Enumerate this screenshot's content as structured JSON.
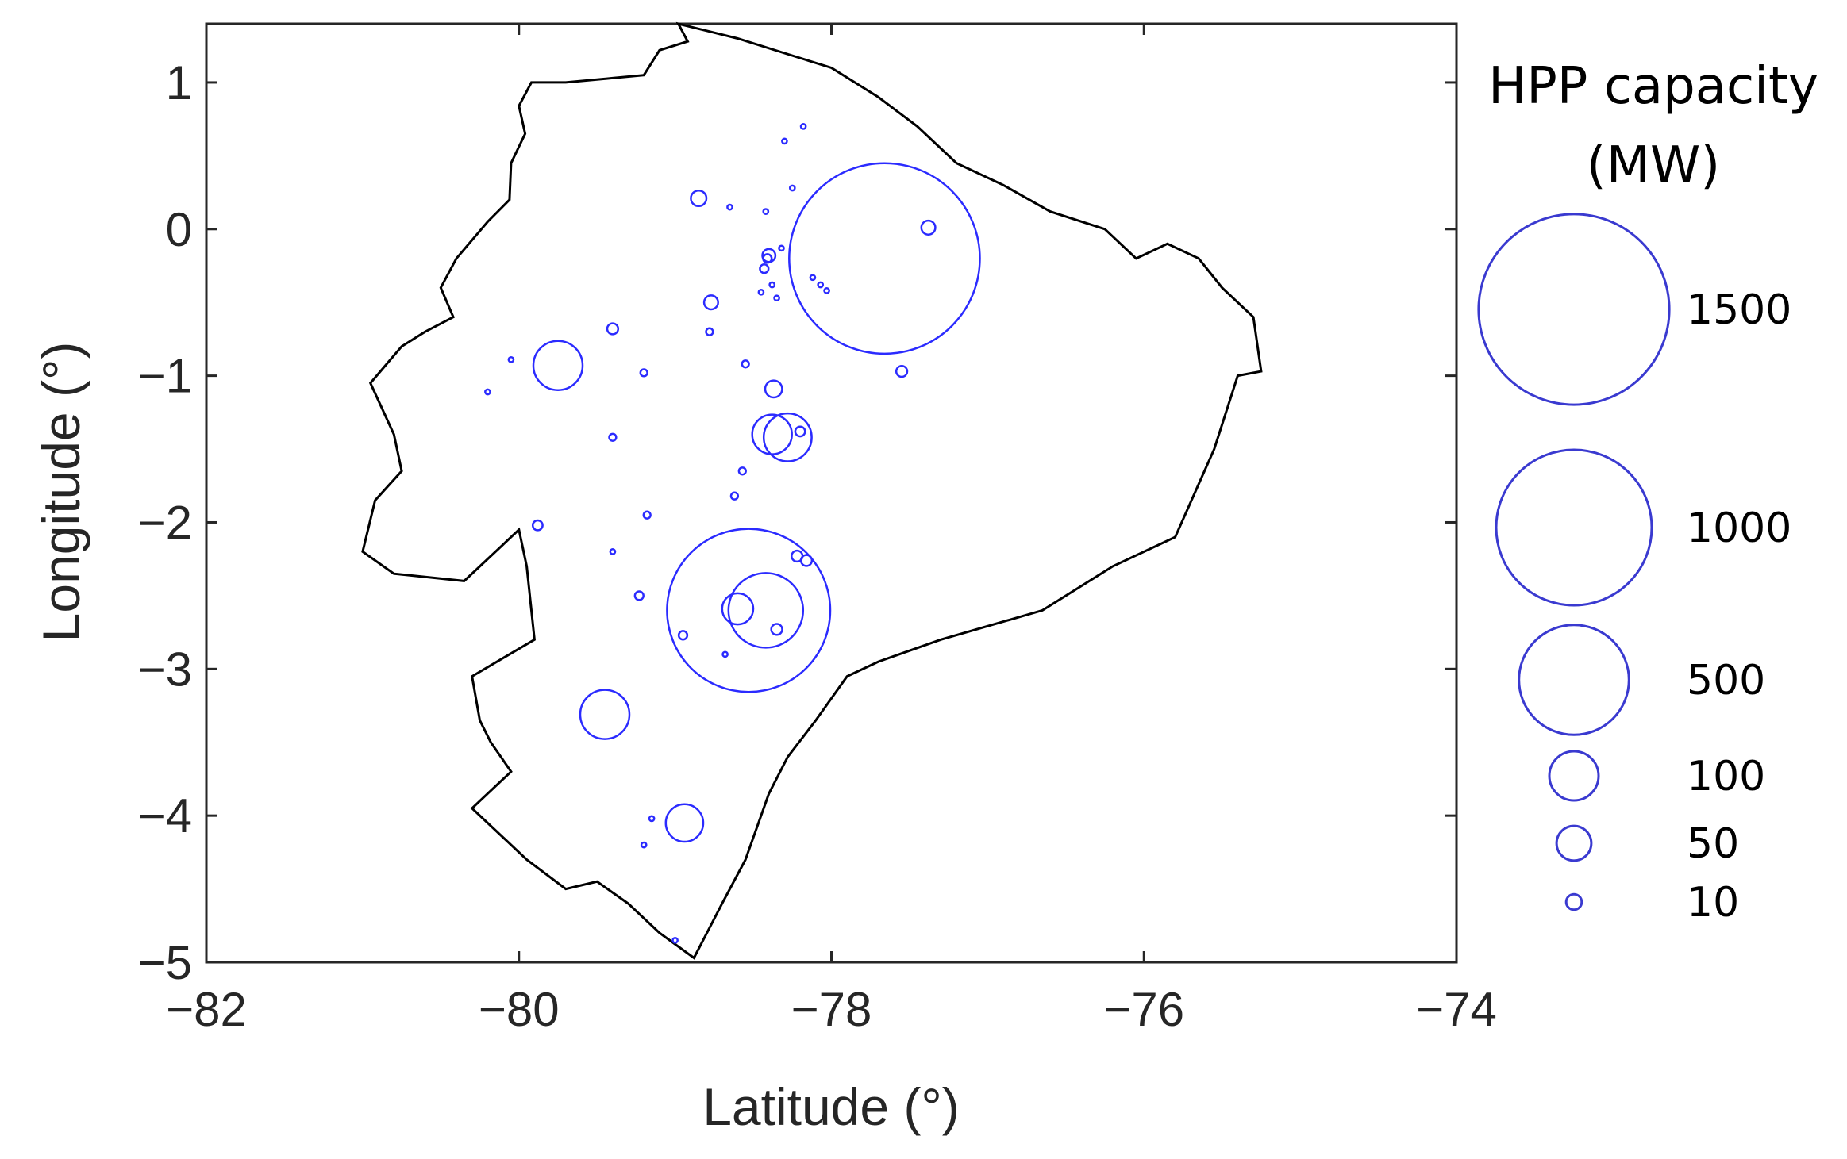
{
  "chart_data": {
    "type": "scatter",
    "title": "",
    "xlabel": "Latitude (°)",
    "ylabel": "Longitude (°)",
    "xlim": [
      -82,
      -74
    ],
    "ylim": [
      -5,
      1.4
    ],
    "xticks": [
      -82,
      -80,
      -78,
      -76,
      -74
    ],
    "yticks": [
      1,
      0,
      -1,
      -2,
      -3,
      -4,
      -5
    ],
    "xtick_labels": [
      "−82",
      "−80",
      "−78",
      "−76",
      "−74"
    ],
    "ytick_labels": [
      "1",
      "0",
      "−1",
      "−2",
      "−3",
      "−4",
      "−5"
    ],
    "grid": false,
    "marker_color": "#2b2bff",
    "outline_color": "#000000",
    "legend": {
      "title_line1": "HPP capacity",
      "title_line2": "(MW)",
      "placement": "right",
      "entries": [
        {
          "label": "1500",
          "capacity": 1500
        },
        {
          "label": "1000",
          "capacity": 1000
        },
        {
          "label": "500",
          "capacity": 500
        },
        {
          "label": "100",
          "capacity": 100
        },
        {
          "label": "50",
          "capacity": 50
        },
        {
          "label": "10",
          "capacity": 10
        }
      ]
    },
    "outline": [
      [
        -78.98,
        1.4
      ],
      [
        -78.92,
        1.28
      ],
      [
        -79.1,
        1.22
      ],
      [
        -79.2,
        1.05
      ],
      [
        -79.4,
        1.03
      ],
      [
        -79.7,
        1.0
      ],
      [
        -79.92,
        1.0
      ],
      [
        -80.0,
        0.84
      ],
      [
        -79.96,
        0.65
      ],
      [
        -80.05,
        0.45
      ],
      [
        -80.06,
        0.2
      ],
      [
        -80.2,
        0.05
      ],
      [
        -80.4,
        -0.2
      ],
      [
        -80.5,
        -0.4
      ],
      [
        -80.42,
        -0.6
      ],
      [
        -80.6,
        -0.7
      ],
      [
        -80.75,
        -0.8
      ],
      [
        -80.95,
        -1.05
      ],
      [
        -80.8,
        -1.4
      ],
      [
        -80.75,
        -1.65
      ],
      [
        -80.92,
        -1.85
      ],
      [
        -81.0,
        -2.2
      ],
      [
        -80.8,
        -2.35
      ],
      [
        -80.35,
        -2.4
      ],
      [
        -80.0,
        -2.05
      ],
      [
        -79.95,
        -2.3
      ],
      [
        -79.9,
        -2.8
      ],
      [
        -80.3,
        -3.05
      ],
      [
        -80.25,
        -3.35
      ],
      [
        -80.18,
        -3.5
      ],
      [
        -80.05,
        -3.7
      ],
      [
        -80.3,
        -3.95
      ],
      [
        -80.15,
        -4.1
      ],
      [
        -79.95,
        -4.3
      ],
      [
        -79.7,
        -4.5
      ],
      [
        -79.5,
        -4.45
      ],
      [
        -79.3,
        -4.6
      ],
      [
        -79.1,
        -4.8
      ],
      [
        -78.88,
        -4.97
      ],
      [
        -78.7,
        -4.6
      ],
      [
        -78.55,
        -4.3
      ],
      [
        -78.4,
        -3.85
      ],
      [
        -78.28,
        -3.6
      ],
      [
        -78.1,
        -3.35
      ],
      [
        -77.9,
        -3.05
      ],
      [
        -77.7,
        -2.95
      ],
      [
        -77.3,
        -2.8
      ],
      [
        -76.65,
        -2.6
      ],
      [
        -76.2,
        -2.3
      ],
      [
        -75.8,
        -2.1
      ],
      [
        -75.55,
        -1.5
      ],
      [
        -75.4,
        -1.0
      ],
      [
        -75.25,
        -0.97
      ],
      [
        -75.3,
        -0.6
      ],
      [
        -75.5,
        -0.4
      ],
      [
        -75.65,
        -0.2
      ],
      [
        -75.85,
        -0.1
      ],
      [
        -76.05,
        -0.2
      ],
      [
        -76.25,
        0.0
      ],
      [
        -76.6,
        0.12
      ],
      [
        -76.9,
        0.3
      ],
      [
        -77.2,
        0.45
      ],
      [
        -77.45,
        0.7
      ],
      [
        -77.7,
        0.9
      ],
      [
        -78.0,
        1.1
      ],
      [
        -78.3,
        1.2
      ],
      [
        -78.6,
        1.3
      ],
      [
        -78.98,
        1.4
      ]
    ],
    "plants": [
      {
        "lon": -77.66,
        "lat": -0.2,
        "capacity": 1500
      },
      {
        "lon": -78.53,
        "lat": -2.6,
        "capacity": 1100
      },
      {
        "lon": -78.42,
        "lat": -2.6,
        "capacity": 230
      },
      {
        "lon": -78.28,
        "lat": -1.42,
        "capacity": 95
      },
      {
        "lon": -78.38,
        "lat": -1.4,
        "capacity": 65
      },
      {
        "lon": -79.75,
        "lat": -0.93,
        "capacity": 100
      },
      {
        "lon": -79.45,
        "lat": -3.31,
        "capacity": 100
      },
      {
        "lon": -78.94,
        "lat": -4.05,
        "capacity": 58
      },
      {
        "lon": -78.6,
        "lat": -2.59,
        "capacity": 40
      },
      {
        "lon": -78.37,
        "lat": -1.09,
        "capacity": 12
      },
      {
        "lon": -78.85,
        "lat": 0.21,
        "capacity": 10
      },
      {
        "lon": -78.77,
        "lat": -0.5,
        "capacity": 8
      },
      {
        "lon": -77.38,
        "lat": 0.01,
        "capacity": 8
      },
      {
        "lon": -78.4,
        "lat": -0.18,
        "capacity": 7
      },
      {
        "lon": -77.55,
        "lat": -0.97,
        "capacity": 5
      },
      {
        "lon": -79.4,
        "lat": -0.68,
        "capacity": 5
      },
      {
        "lon": -78.22,
        "lat": -2.23,
        "capacity": 5
      },
      {
        "lon": -78.16,
        "lat": -2.26,
        "capacity": 5
      },
      {
        "lon": -78.35,
        "lat": -2.73,
        "capacity": 5
      },
      {
        "lon": -79.88,
        "lat": -2.02,
        "capacity": 4
      },
      {
        "lon": -78.2,
        "lat": -1.38,
        "capacity": 4
      },
      {
        "lon": -78.41,
        "lat": -0.2,
        "capacity": 3
      },
      {
        "lon": -78.43,
        "lat": -0.27,
        "capacity": 3
      },
      {
        "lon": -78.95,
        "lat": -2.77,
        "capacity": 3
      },
      {
        "lon": -79.23,
        "lat": -2.5,
        "capacity": 3
      },
      {
        "lon": -78.78,
        "lat": -0.7,
        "capacity": 2
      },
      {
        "lon": -78.62,
        "lat": -1.82,
        "capacity": 2
      },
      {
        "lon": -78.57,
        "lat": -1.65,
        "capacity": 2
      },
      {
        "lon": -78.55,
        "lat": -0.92,
        "capacity": 2
      },
      {
        "lon": -79.18,
        "lat": -1.95,
        "capacity": 2
      },
      {
        "lon": -79.2,
        "lat": -0.98,
        "capacity": 2
      },
      {
        "lon": -79.4,
        "lat": -1.42,
        "capacity": 2
      },
      {
        "lon": -79.4,
        "lat": -2.2,
        "capacity": 1
      },
      {
        "lon": -80.05,
        "lat": -0.89,
        "capacity": 1
      },
      {
        "lon": -80.2,
        "lat": -1.11,
        "capacity": 1
      },
      {
        "lon": -78.68,
        "lat": -2.9,
        "capacity": 1
      },
      {
        "lon": -79.15,
        "lat": -4.02,
        "capacity": 1
      },
      {
        "lon": -79.2,
        "lat": -4.2,
        "capacity": 1
      },
      {
        "lon": -79.0,
        "lat": -4.85,
        "capacity": 1
      },
      {
        "lon": -78.65,
        "lat": 0.15,
        "capacity": 1
      },
      {
        "lon": -78.42,
        "lat": 0.12,
        "capacity": 1
      },
      {
        "lon": -78.3,
        "lat": 0.6,
        "capacity": 1
      },
      {
        "lon": -78.18,
        "lat": 0.7,
        "capacity": 1
      },
      {
        "lon": -78.25,
        "lat": 0.28,
        "capacity": 1
      },
      {
        "lon": -78.32,
        "lat": -0.13,
        "capacity": 1
      },
      {
        "lon": -78.38,
        "lat": -0.38,
        "capacity": 1
      },
      {
        "lon": -78.45,
        "lat": -0.43,
        "capacity": 1
      },
      {
        "lon": -78.35,
        "lat": -0.47,
        "capacity": 1
      },
      {
        "lon": -78.12,
        "lat": -0.33,
        "capacity": 1
      },
      {
        "lon": -78.07,
        "lat": -0.38,
        "capacity": 1
      },
      {
        "lon": -78.03,
        "lat": -0.42,
        "capacity": 1
      }
    ]
  }
}
